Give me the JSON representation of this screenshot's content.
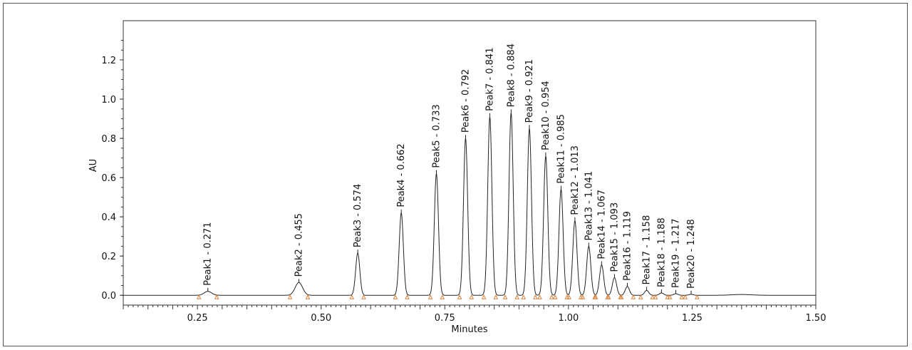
{
  "chart_data": {
    "type": "line",
    "xlabel": "Minutes",
    "ylabel": "AU",
    "xlim": [
      0.1,
      1.5
    ],
    "ylim": [
      -0.05,
      1.4
    ],
    "x_ticks": [
      "0.25",
      "0.50",
      "0.75",
      "1.00",
      "1.25",
      "1.50"
    ],
    "y_ticks": [
      "0.0",
      "0.2",
      "0.4",
      "0.6",
      "0.8",
      "1.0",
      "1.2"
    ],
    "grid": false,
    "line_color": "#222222",
    "marker_color": "#d9823b",
    "peaks": [
      {
        "label": "Peak1 - 0.271",
        "t": 0.271,
        "h": 0.02
      },
      {
        "label": "Peak2 - 0.455",
        "t": 0.455,
        "h": 0.065
      },
      {
        "label": "Peak3 - 0.574",
        "t": 0.574,
        "h": 0.215
      },
      {
        "label": "Peak4 - 0.662",
        "t": 0.662,
        "h": 0.42
      },
      {
        "label": "Peak5 - 0.733",
        "t": 0.733,
        "h": 0.62
      },
      {
        "label": "Peak6 - 0.792",
        "t": 0.792,
        "h": 0.8
      },
      {
        "label": "Peak7 - 0.841",
        "t": 0.841,
        "h": 0.91
      },
      {
        "label": "Peak8 - 0.884",
        "t": 0.884,
        "h": 0.93
      },
      {
        "label": "Peak9 - 0.921",
        "t": 0.921,
        "h": 0.85
      },
      {
        "label": "Peak10 - 0.954",
        "t": 0.954,
        "h": 0.71
      },
      {
        "label": "Peak11 - 0.985",
        "t": 0.985,
        "h": 0.54
      },
      {
        "label": "Peak12 - 1.013",
        "t": 1.013,
        "h": 0.38
      },
      {
        "label": "Peak13 - 1.041",
        "t": 1.041,
        "h": 0.25
      },
      {
        "label": "Peak14 - 1.067",
        "t": 1.067,
        "h": 0.155
      },
      {
        "label": "Peak15 - 1.093",
        "t": 1.093,
        "h": 0.09
      },
      {
        "label": "Peak16 - 1.119",
        "t": 1.119,
        "h": 0.045
      },
      {
        "label": "Peak17 - 1.158",
        "t": 1.158,
        "h": 0.025
      },
      {
        "label": "Peak18 - 1.188",
        "t": 1.188,
        "h": 0.012
      },
      {
        "label": "Peak19 - 1.217",
        "t": 1.217,
        "h": 0.008
      },
      {
        "label": "Peak20 - 1.248",
        "t": 1.248,
        "h": 0.005
      }
    ]
  }
}
